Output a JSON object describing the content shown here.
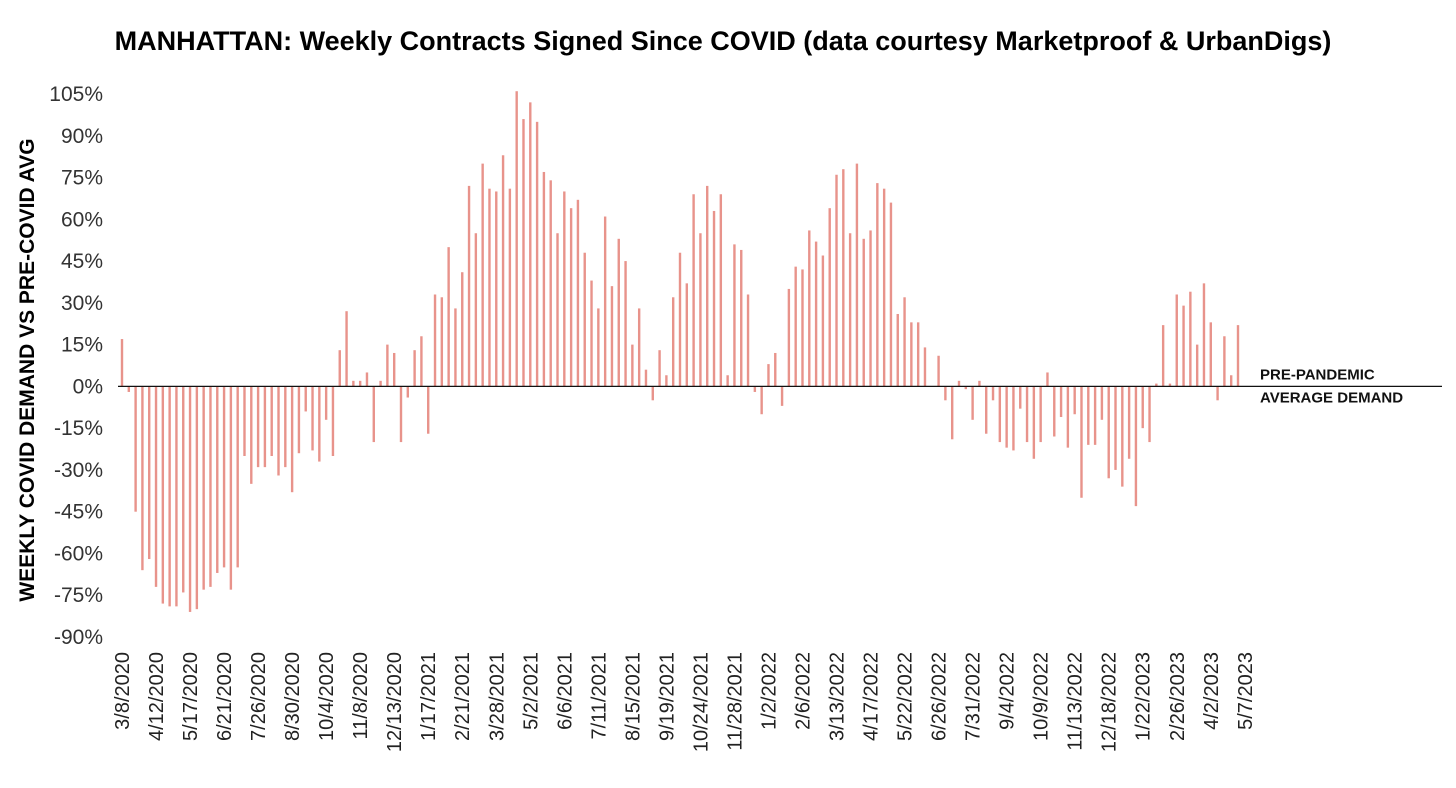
{
  "chart_data": {
    "type": "bar",
    "title": "MANHATTAN: Weekly Contracts Signed Since COVID (data courtesy Marketproof & UrbanDigs)",
    "ylabel": "WEEKLY COVID DEMAND VS PRE-COVID AVG",
    "xlabel": "",
    "ylim": [
      -90,
      105
    ],
    "y_ticks": [
      105,
      90,
      75,
      60,
      45,
      30,
      15,
      0,
      -15,
      -30,
      -45,
      -60,
      -75,
      -90
    ],
    "y_tick_labels": [
      "105%",
      "90%",
      "75%",
      "60%",
      "45%",
      "30%",
      "15%",
      "0%",
      "-15%",
      "-30%",
      "-45%",
      "-60%",
      "-75%",
      "-90%"
    ],
    "x_tick_labels": [
      "3/8/2020",
      "4/12/2020",
      "5/17/2020",
      "6/21/2020",
      "7/26/2020",
      "8/30/2020",
      "10/4/2020",
      "11/8/2020",
      "12/13/2020",
      "1/17/2021",
      "2/21/2021",
      "3/28/2021",
      "5/2/2021",
      "6/6/2021",
      "7/11/2021",
      "8/15/2021",
      "9/19/2021",
      "10/24/2021",
      "11/28/2021",
      "1/2/2022",
      "2/6/2022",
      "3/13/2022",
      "4/17/2022",
      "5/22/2022",
      "6/26/2022",
      "7/31/2022",
      "9/4/2022",
      "10/9/2022",
      "11/13/2022",
      "12/18/2022",
      "1/22/2023",
      "2/26/2023",
      "4/2/2023",
      "5/7/2023"
    ],
    "x_tick_every": 5,
    "grid": false,
    "bar_color": "#e8938b",
    "zero_line_color": "#111111",
    "annotation": [
      "PRE-PANDEMIC",
      "AVERAGE DEMAND"
    ],
    "values": [
      17,
      -2,
      -45,
      -66,
      -62,
      -72,
      -78,
      -79,
      -79,
      -74,
      -81,
      -80,
      -73,
      -72,
      -67,
      -65,
      -73,
      -65,
      -25,
      -35,
      -29,
      -29,
      -25,
      -32,
      -29,
      -38,
      -24,
      -9,
      -23,
      -27,
      -12,
      -25,
      13,
      27,
      2,
      2,
      5,
      -20,
      2,
      15,
      12,
      -20,
      -4,
      13,
      18,
      -17,
      33,
      32,
      50,
      28,
      41,
      72,
      55,
      80,
      71,
      70,
      83,
      71,
      106,
      96,
      102,
      95,
      77,
      74,
      55,
      70,
      64,
      67,
      48,
      38,
      28,
      61,
      36,
      53,
      45,
      15,
      28,
      6,
      -5,
      13,
      4,
      32,
      48,
      37,
      69,
      55,
      72,
      63,
      69,
      4,
      51,
      49,
      33,
      -2,
      -10,
      8,
      12,
      -7,
      35,
      43,
      42,
      56,
      52,
      47,
      64,
      76,
      78,
      55,
      80,
      53,
      56,
      73,
      71,
      66,
      26,
      32,
      23,
      23,
      14,
      0,
      11,
      -5,
      -19,
      2,
      -1,
      -12,
      2,
      -17,
      -5,
      -20,
      -22,
      -23,
      -8,
      -20,
      -26,
      -20,
      5,
      -18,
      -11,
      -22,
      -10,
      -40,
      -21,
      -21,
      -12,
      -33,
      -30,
      -36,
      -26,
      -43,
      -15,
      -20,
      1,
      22,
      1,
      33,
      29,
      34,
      15,
      37,
      23,
      -5,
      18,
      4,
      22
    ]
  }
}
